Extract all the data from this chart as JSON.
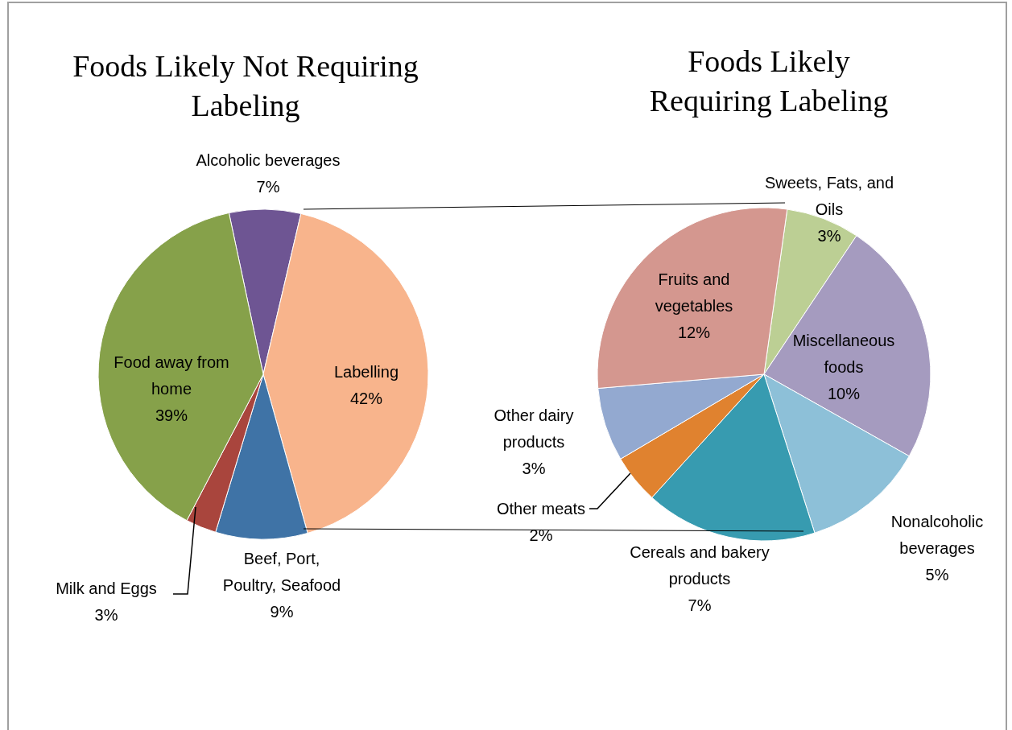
{
  "chart_data": [
    {
      "type": "pie",
      "title": "Foods Likely Not Requiring Labeling",
      "categories": [
        "Alcoholic beverages",
        "Labelling",
        "Beef, Port, Poultry, Seafood",
        "Milk and Eggs",
        "Food away from home"
      ],
      "values": [
        7,
        42,
        9,
        3,
        39
      ],
      "colors": [
        "#6e5593",
        "#f8b48c",
        "#3f73a6",
        "#a9453d",
        "#86a14a"
      ],
      "value_labels": [
        "7%",
        "42%",
        "9%",
        "3%",
        "39%"
      ]
    },
    {
      "type": "pie",
      "title": "Foods Likely Requiring Labeling",
      "categories": [
        "Sweets, Fats, and Oils",
        "Miscellaneous foods",
        "Nonalcoholic beverages",
        "Cereals and bakery products",
        "Other meats",
        "Other dairy products",
        "Fruits and vegetables"
      ],
      "values": [
        3,
        10,
        5,
        7,
        2,
        3,
        12
      ],
      "colors": [
        "#bccf94",
        "#a59bbf",
        "#8dc0d8",
        "#379bb0",
        "#e0822f",
        "#93a9d0",
        "#d4978f"
      ],
      "value_labels": [
        "3%",
        "10%",
        "5%",
        "7%",
        "2%",
        "3%",
        "12%"
      ]
    }
  ]
}
